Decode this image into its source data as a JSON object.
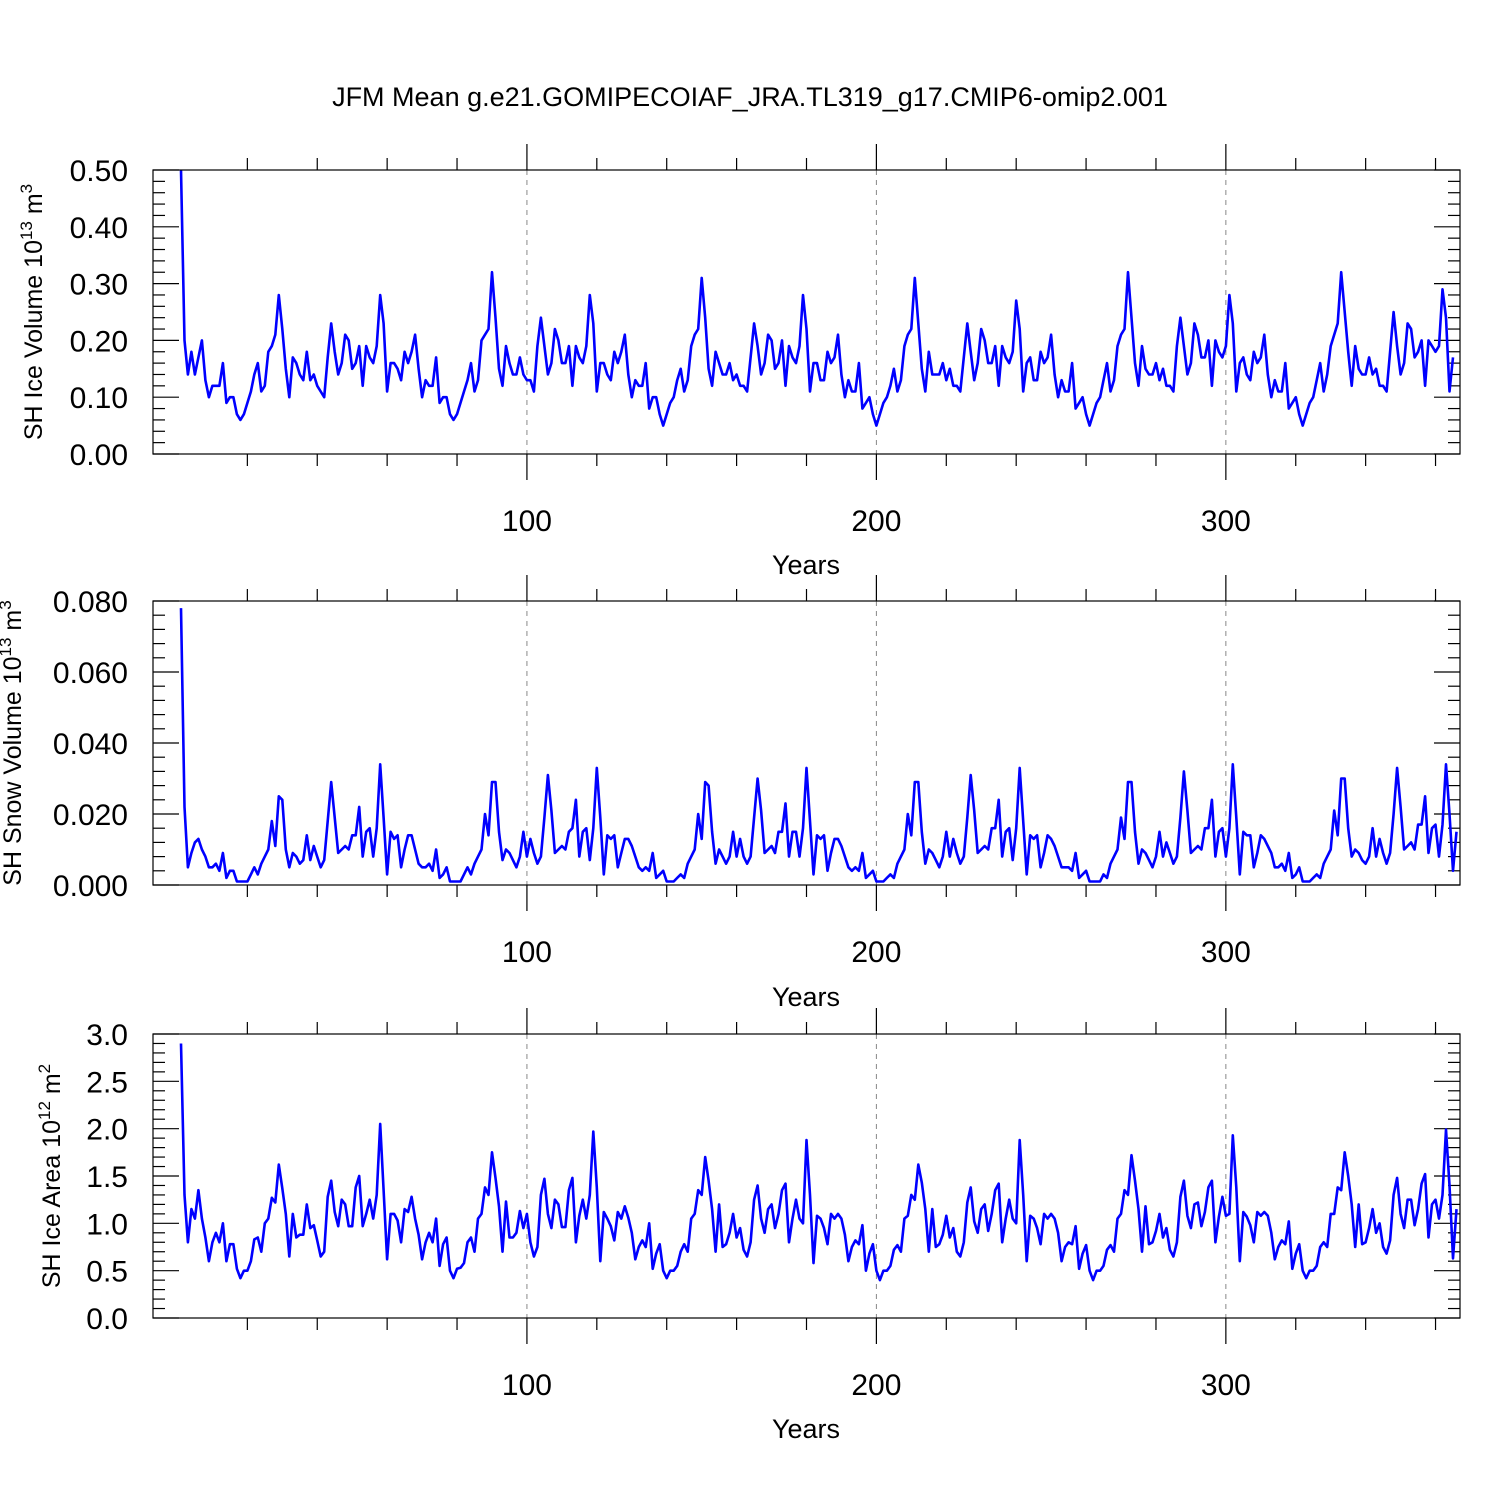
{
  "title": "JFM Mean g.e21.GOMIPECOIAF_JRA.TL319_g17.CMIP6-omip2.001",
  "line_color": "#0000ff",
  "chart_data": [
    {
      "type": "line",
      "ylabel_main": "SH Ice Volume 10",
      "ylabel_exp": "13",
      "ylabel_unit": "m",
      "ylabel_unit_exp": "3",
      "xlabel": "Years",
      "xlim": [
        -7,
        367
      ],
      "ylim": [
        0,
        0.5
      ],
      "xticks": [
        "100",
        "200",
        "300"
      ],
      "xtick_values": [
        100,
        200,
        300
      ],
      "yticks": [
        "0.00",
        "0.10",
        "0.20",
        "0.30",
        "0.40",
        "0.50"
      ],
      "ytick_values": [
        0,
        0.1,
        0.2,
        0.3,
        0.4,
        0.5
      ],
      "x_start": 1,
      "values": [
        0.5,
        0.2,
        0.14,
        0.18,
        0.14,
        0.17,
        0.2,
        0.13,
        0.1,
        0.12,
        0.12,
        0.12,
        0.16,
        0.09,
        0.1,
        0.1,
        0.07,
        0.06,
        0.07,
        0.09,
        0.11,
        0.14,
        0.16,
        0.11,
        0.12,
        0.18,
        0.19,
        0.21,
        0.28,
        0.22,
        0.15,
        0.1,
        0.17,
        0.16,
        0.14,
        0.13,
        0.18,
        0.13,
        0.14,
        0.12,
        0.11,
        0.1,
        0.17,
        0.23,
        0.18,
        0.14,
        0.16,
        0.21,
        0.2,
        0.15,
        0.16,
        0.19,
        0.12,
        0.19,
        0.17,
        0.16,
        0.19,
        0.28,
        0.23,
        0.11,
        0.16,
        0.16,
        0.15,
        0.13,
        0.18,
        0.16,
        0.18,
        0.21,
        0.15,
        0.1,
        0.13,
        0.12,
        0.12,
        0.17,
        0.09,
        0.1,
        0.1,
        0.07,
        0.06,
        0.07,
        0.09,
        0.11,
        0.13,
        0.16,
        0.11,
        0.13,
        0.2,
        0.21,
        0.22,
        0.32,
        0.24,
        0.15,
        0.12,
        0.19,
        0.16,
        0.14,
        0.14,
        0.17,
        0.14,
        0.13,
        0.13,
        0.11,
        0.19,
        0.24,
        0.19,
        0.14,
        0.16,
        0.22,
        0.2,
        0.16,
        0.16,
        0.19,
        0.12,
        0.19,
        0.17,
        0.16,
        0.19,
        0.28,
        0.23,
        0.11,
        0.16,
        0.16,
        0.14,
        0.13,
        0.18,
        0.16,
        0.18,
        0.21,
        0.14,
        0.1,
        0.13,
        0.12,
        0.12,
        0.16,
        0.08,
        0.1,
        0.1,
        0.07,
        0.05,
        0.07,
        0.09,
        0.1,
        0.13,
        0.15,
        0.11,
        0.13,
        0.19,
        0.21,
        0.22,
        0.31,
        0.24,
        0.15,
        0.12,
        0.18,
        0.16,
        0.14,
        0.14,
        0.16,
        0.13,
        0.14,
        0.12,
        0.12,
        0.11,
        0.17,
        0.23,
        0.19,
        0.14,
        0.16,
        0.21,
        0.2,
        0.15,
        0.16,
        0.2,
        0.12,
        0.19,
        0.17,
        0.16,
        0.19,
        0.28,
        0.22,
        0.11,
        0.16,
        0.16,
        0.13,
        0.13,
        0.18,
        0.16,
        0.17,
        0.21,
        0.14,
        0.1,
        0.13,
        0.11,
        0.11,
        0.16,
        0.08,
        0.09,
        0.1,
        0.07,
        0.05,
        0.07,
        0.09,
        0.1,
        0.12,
        0.15,
        0.11,
        0.13,
        0.19,
        0.21,
        0.22,
        0.31,
        0.23,
        0.15,
        0.11,
        0.18,
        0.14,
        0.14,
        0.14,
        0.16,
        0.13,
        0.15,
        0.12,
        0.12,
        0.11,
        0.17,
        0.23,
        0.18,
        0.13,
        0.16,
        0.22,
        0.2,
        0.16,
        0.16,
        0.19,
        0.12,
        0.19,
        0.17,
        0.16,
        0.18,
        0.27,
        0.22,
        0.11,
        0.16,
        0.17,
        0.13,
        0.13,
        0.18,
        0.16,
        0.17,
        0.21,
        0.14,
        0.1,
        0.13,
        0.11,
        0.11,
        0.16,
        0.08,
        0.09,
        0.1,
        0.07,
        0.05,
        0.07,
        0.09,
        0.1,
        0.13,
        0.16,
        0.11,
        0.13,
        0.19,
        0.21,
        0.22,
        0.32,
        0.24,
        0.16,
        0.12,
        0.19,
        0.15,
        0.14,
        0.14,
        0.16,
        0.13,
        0.15,
        0.12,
        0.12,
        0.11,
        0.19,
        0.24,
        0.19,
        0.14,
        0.16,
        0.23,
        0.21,
        0.17,
        0.17,
        0.2,
        0.12,
        0.2,
        0.18,
        0.17,
        0.19,
        0.28,
        0.23,
        0.11,
        0.16,
        0.17,
        0.14,
        0.13,
        0.18,
        0.16,
        0.17,
        0.21,
        0.14,
        0.1,
        0.13,
        0.11,
        0.11,
        0.16,
        0.08,
        0.09,
        0.1,
        0.07,
        0.05,
        0.07,
        0.09,
        0.1,
        0.13,
        0.16,
        0.11,
        0.14,
        0.19,
        0.21,
        0.23,
        0.32,
        0.25,
        0.18,
        0.12,
        0.19,
        0.15,
        0.14,
        0.14,
        0.17,
        0.14,
        0.15,
        0.12,
        0.12,
        0.11,
        0.18,
        0.25,
        0.19,
        0.14,
        0.16,
        0.23,
        0.22,
        0.17,
        0.18,
        0.2,
        0.12,
        0.2,
        0.19,
        0.18,
        0.19,
        0.29,
        0.24,
        0.11,
        0.17
      ]
    },
    {
      "type": "line",
      "ylabel_main": "SH Snow Volume 10",
      "ylabel_exp": "13",
      "ylabel_unit": "m",
      "ylabel_unit_exp": "3",
      "xlabel": "Years",
      "xlim": [
        -7,
        367
      ],
      "ylim": [
        0,
        0.08
      ],
      "xticks": [
        "100",
        "200",
        "300"
      ],
      "xtick_values": [
        100,
        200,
        300
      ],
      "yticks": [
        "0.000",
        "0.020",
        "0.040",
        "0.060",
        "0.080"
      ],
      "ytick_values": [
        0,
        0.02,
        0.04,
        0.06,
        0.08
      ],
      "x_start": 1,
      "values": [
        0.078,
        0.022,
        0.005,
        0.009,
        0.012,
        0.013,
        0.01,
        0.008,
        0.005,
        0.005,
        0.006,
        0.004,
        0.009,
        0.002,
        0.004,
        0.004,
        0.001,
        0.001,
        0.001,
        0.001,
        0.003,
        0.005,
        0.003,
        0.006,
        0.008,
        0.01,
        0.018,
        0.011,
        0.025,
        0.024,
        0.01,
        0.005,
        0.009,
        0.008,
        0.006,
        0.007,
        0.014,
        0.007,
        0.011,
        0.008,
        0.005,
        0.007,
        0.018,
        0.029,
        0.019,
        0.009,
        0.01,
        0.011,
        0.01,
        0.014,
        0.014,
        0.022,
        0.008,
        0.015,
        0.016,
        0.008,
        0.016,
        0.034,
        0.019,
        0.003,
        0.015,
        0.013,
        0.014,
        0.005,
        0.01,
        0.014,
        0.014,
        0.01,
        0.006,
        0.005,
        0.005,
        0.006,
        0.004,
        0.01,
        0.002,
        0.003,
        0.005,
        0.001,
        0.001,
        0.001,
        0.001,
        0.003,
        0.005,
        0.003,
        0.006,
        0.008,
        0.01,
        0.02,
        0.014,
        0.029,
        0.029,
        0.015,
        0.007,
        0.01,
        0.009,
        0.007,
        0.005,
        0.008,
        0.015,
        0.008,
        0.013,
        0.009,
        0.006,
        0.008,
        0.019,
        0.031,
        0.021,
        0.009,
        0.01,
        0.011,
        0.01,
        0.015,
        0.016,
        0.024,
        0.008,
        0.015,
        0.016,
        0.007,
        0.016,
        0.033,
        0.019,
        0.003,
        0.014,
        0.013,
        0.014,
        0.005,
        0.009,
        0.013,
        0.013,
        0.011,
        0.008,
        0.005,
        0.004,
        0.005,
        0.004,
        0.009,
        0.002,
        0.003,
        0.004,
        0.001,
        0.001,
        0.001,
        0.002,
        0.003,
        0.002,
        0.006,
        0.008,
        0.01,
        0.02,
        0.013,
        0.029,
        0.028,
        0.015,
        0.006,
        0.01,
        0.008,
        0.006,
        0.008,
        0.015,
        0.008,
        0.013,
        0.008,
        0.006,
        0.008,
        0.019,
        0.03,
        0.021,
        0.009,
        0.01,
        0.011,
        0.009,
        0.015,
        0.015,
        0.023,
        0.008,
        0.015,
        0.015,
        0.008,
        0.016,
        0.033,
        0.018,
        0.003,
        0.014,
        0.013,
        0.014,
        0.004,
        0.009,
        0.013,
        0.013,
        0.011,
        0.008,
        0.005,
        0.004,
        0.005,
        0.004,
        0.009,
        0.002,
        0.003,
        0.004,
        0.001,
        0.001,
        0.001,
        0.002,
        0.003,
        0.002,
        0.006,
        0.008,
        0.01,
        0.02,
        0.014,
        0.029,
        0.029,
        0.015,
        0.006,
        0.01,
        0.009,
        0.007,
        0.005,
        0.008,
        0.015,
        0.008,
        0.013,
        0.009,
        0.006,
        0.008,
        0.019,
        0.031,
        0.021,
        0.009,
        0.01,
        0.011,
        0.01,
        0.016,
        0.016,
        0.024,
        0.008,
        0.015,
        0.016,
        0.007,
        0.016,
        0.033,
        0.018,
        0.003,
        0.014,
        0.013,
        0.014,
        0.005,
        0.009,
        0.014,
        0.013,
        0.011,
        0.008,
        0.005,
        0.005,
        0.005,
        0.004,
        0.009,
        0.002,
        0.003,
        0.004,
        0.001,
        0.001,
        0.001,
        0.001,
        0.003,
        0.002,
        0.006,
        0.008,
        0.01,
        0.019,
        0.013,
        0.029,
        0.029,
        0.015,
        0.006,
        0.01,
        0.009,
        0.007,
        0.005,
        0.008,
        0.015,
        0.008,
        0.012,
        0.009,
        0.006,
        0.008,
        0.019,
        0.032,
        0.021,
        0.009,
        0.01,
        0.011,
        0.01,
        0.016,
        0.016,
        0.024,
        0.008,
        0.015,
        0.016,
        0.008,
        0.016,
        0.034,
        0.019,
        0.003,
        0.015,
        0.014,
        0.014,
        0.005,
        0.009,
        0.014,
        0.013,
        0.011,
        0.009,
        0.005,
        0.005,
        0.006,
        0.004,
        0.009,
        0.002,
        0.003,
        0.005,
        0.001,
        0.001,
        0.001,
        0.002,
        0.003,
        0.002,
        0.006,
        0.008,
        0.01,
        0.021,
        0.014,
        0.03,
        0.03,
        0.016,
        0.008,
        0.01,
        0.009,
        0.007,
        0.006,
        0.008,
        0.016,
        0.008,
        0.013,
        0.009,
        0.006,
        0.009,
        0.02,
        0.033,
        0.022,
        0.01,
        0.011,
        0.012,
        0.01,
        0.017,
        0.017,
        0.025,
        0.009,
        0.016,
        0.017,
        0.008,
        0.017,
        0.034,
        0.02,
        0.004,
        0.015
      ]
    },
    {
      "type": "line",
      "ylabel_main": "SH Ice Area 10",
      "ylabel_exp": "12",
      "ylabel_unit": "m",
      "ylabel_unit_exp": "2",
      "xlabel": "Years",
      "xlim": [
        -7,
        367
      ],
      "ylim": [
        0,
        3.0
      ],
      "xticks": [
        "100",
        "200",
        "300"
      ],
      "xtick_values": [
        100,
        200,
        300
      ],
      "yticks": [
        "0.0",
        "0.5",
        "1.0",
        "1.5",
        "2.0",
        "2.5",
        "3.0"
      ],
      "ytick_values": [
        0,
        0.5,
        1.0,
        1.5,
        2.0,
        2.5,
        3.0
      ],
      "x_start": 1,
      "values": [
        2.9,
        1.3,
        0.8,
        1.15,
        1.05,
        1.35,
        1.05,
        0.85,
        0.6,
        0.8,
        0.9,
        0.8,
        1.0,
        0.6,
        0.78,
        0.78,
        0.52,
        0.42,
        0.5,
        0.5,
        0.6,
        0.83,
        0.85,
        0.7,
        1.0,
        1.05,
        1.27,
        1.22,
        1.62,
        1.37,
        1.1,
        0.65,
        1.1,
        0.85,
        0.88,
        0.88,
        1.2,
        0.95,
        0.98,
        0.82,
        0.65,
        0.7,
        1.28,
        1.45,
        1.12,
        0.97,
        1.25,
        1.2,
        0.97,
        0.97,
        1.38,
        1.5,
        0.97,
        1.1,
        1.25,
        1.05,
        1.3,
        2.05,
        1.35,
        0.62,
        1.1,
        1.1,
        1.03,
        0.8,
        1.15,
        1.12,
        1.28,
        1.05,
        0.88,
        0.62,
        0.8,
        0.9,
        0.8,
        1.05,
        0.55,
        0.78,
        0.85,
        0.5,
        0.42,
        0.52,
        0.53,
        0.58,
        0.8,
        0.85,
        0.7,
        1.05,
        1.1,
        1.38,
        1.3,
        1.75,
        1.48,
        1.18,
        0.7,
        1.23,
        0.85,
        0.85,
        0.9,
        1.13,
        0.95,
        1.1,
        0.8,
        0.65,
        0.75,
        1.3,
        1.47,
        1.1,
        0.95,
        1.25,
        1.2,
        0.96,
        0.96,
        1.35,
        1.48,
        0.8,
        1.08,
        1.25,
        1.05,
        1.3,
        1.97,
        1.38,
        0.6,
        1.12,
        1.05,
        0.97,
        0.82,
        1.12,
        1.05,
        1.18,
        1.06,
        0.9,
        0.62,
        0.75,
        0.82,
        0.75,
        1.0,
        0.52,
        0.68,
        0.78,
        0.5,
        0.42,
        0.5,
        0.5,
        0.55,
        0.7,
        0.78,
        0.7,
        1.05,
        1.1,
        1.35,
        1.3,
        1.7,
        1.45,
        1.15,
        0.7,
        1.2,
        0.75,
        0.78,
        0.9,
        1.1,
        0.85,
        0.95,
        0.72,
        0.65,
        0.8,
        1.25,
        1.4,
        1.05,
        0.9,
        1.15,
        1.2,
        0.95,
        1.1,
        1.35,
        1.42,
        0.8,
        1.05,
        1.25,
        1.05,
        1.0,
        1.88,
        1.3,
        0.58,
        1.08,
        1.05,
        0.95,
        0.78,
        1.1,
        1.05,
        1.1,
        1.05,
        0.88,
        0.6,
        0.75,
        0.82,
        0.78,
        0.98,
        0.5,
        0.68,
        0.78,
        0.5,
        0.4,
        0.5,
        0.5,
        0.55,
        0.72,
        0.77,
        0.7,
        1.05,
        1.08,
        1.3,
        1.25,
        1.62,
        1.43,
        1.15,
        0.7,
        1.15,
        0.75,
        0.78,
        0.88,
        1.08,
        0.85,
        0.95,
        0.7,
        0.65,
        0.8,
        1.22,
        1.38,
        1.02,
        0.9,
        1.15,
        1.2,
        0.92,
        1.1,
        1.35,
        1.42,
        0.8,
        1.05,
        1.25,
        1.05,
        1.0,
        1.88,
        1.3,
        0.6,
        1.08,
        1.05,
        0.95,
        0.78,
        1.1,
        1.05,
        1.1,
        1.05,
        0.9,
        0.6,
        0.75,
        0.8,
        0.78,
        0.97,
        0.52,
        0.68,
        0.77,
        0.5,
        0.4,
        0.5,
        0.5,
        0.55,
        0.72,
        0.77,
        0.7,
        1.05,
        1.1,
        1.35,
        1.3,
        1.72,
        1.45,
        1.15,
        0.7,
        1.18,
        0.78,
        0.8,
        0.92,
        1.1,
        0.85,
        0.95,
        0.72,
        0.65,
        0.8,
        1.28,
        1.45,
        1.08,
        0.95,
        1.2,
        1.22,
        0.97,
        1.12,
        1.38,
        1.45,
        0.8,
        1.07,
        1.28,
        1.08,
        1.1,
        1.93,
        1.38,
        0.6,
        1.12,
        1.07,
        0.98,
        0.8,
        1.12,
        1.08,
        1.12,
        1.08,
        0.9,
        0.62,
        0.75,
        0.82,
        0.78,
        1.02,
        0.52,
        0.68,
        0.78,
        0.5,
        0.42,
        0.5,
        0.5,
        0.55,
        0.75,
        0.8,
        0.75,
        1.1,
        1.1,
        1.38,
        1.35,
        1.75,
        1.5,
        1.2,
        0.75,
        1.2,
        0.78,
        0.8,
        0.95,
        1.15,
        0.9,
        1.0,
        0.75,
        0.68,
        0.82,
        1.3,
        1.48,
        1.1,
        0.95,
        1.25,
        1.25,
        0.98,
        1.15,
        1.42,
        1.52,
        0.85,
        1.2,
        1.25,
        1.05,
        1.3,
        1.99,
        1.4,
        0.63,
        1.15
      ]
    }
  ]
}
